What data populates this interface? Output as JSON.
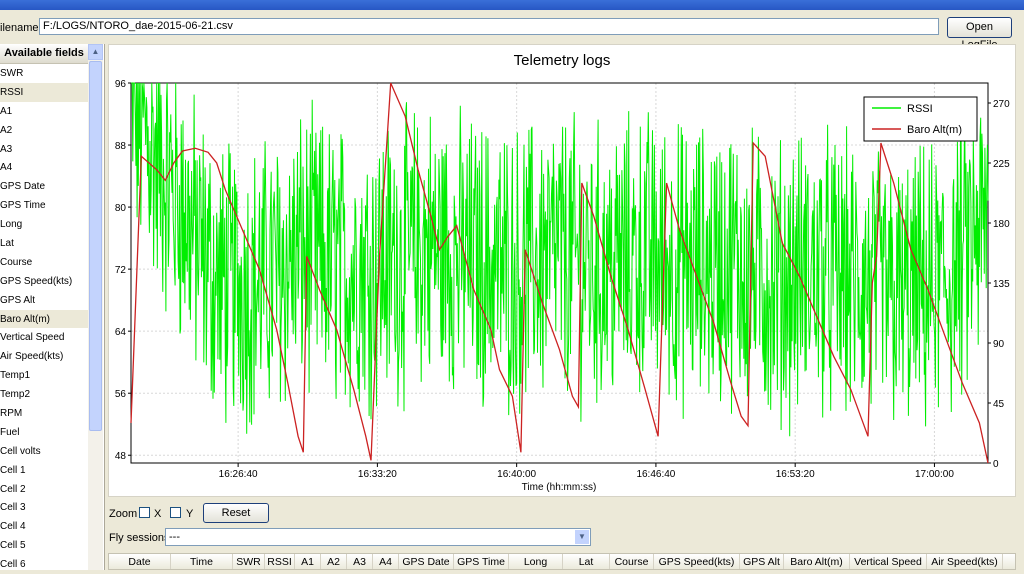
{
  "window": {
    "title": ""
  },
  "file": {
    "label": "ilename",
    "path": "F:/LOGS/NTORO_dae-2015-06-21.csv",
    "open_button": "Open LogFile"
  },
  "sidebar": {
    "header": "Available fields",
    "items": [
      "SWR",
      "RSSI",
      "A1",
      "A2",
      "A3",
      "A4",
      "GPS Date",
      "GPS Time",
      "Long",
      "Lat",
      "Course",
      "GPS Speed(kts)",
      "GPS Alt",
      "Baro Alt(m)",
      "Vertical Speed",
      "Air Speed(kts)",
      "Temp1",
      "Temp2",
      "RPM",
      "Fuel",
      "Cell volts",
      "Cell 1",
      "Cell 2",
      "Cell 3",
      "Cell 4",
      "Cell 5",
      "Cell 6"
    ],
    "selected": [
      "RSSI",
      "Baro Alt(m)"
    ]
  },
  "controls": {
    "zoom_label": "Zoom",
    "zoom_x": "X",
    "zoom_y": "Y",
    "reset": "Reset",
    "fly_label": "Fly sessions",
    "fly_value": "---"
  },
  "table": {
    "columns": [
      "Date",
      "Time",
      "SWR",
      "RSSI",
      "A1",
      "A2",
      "A3",
      "A4",
      "GPS Date",
      "GPS Time",
      "Long",
      "Lat",
      "Course",
      "GPS Speed(kts)",
      "GPS Alt",
      "Baro Alt(m)",
      "Vertical Speed",
      "Air Speed(kts)"
    ]
  },
  "colors": {
    "rssi": "#00ee00",
    "baro": "#cc2222",
    "grid": "#d8d8d8"
  },
  "chart_data": {
    "type": "line",
    "title": "Telemetry logs",
    "xlabel": "Time (hh:mm:ss)",
    "x_tick_labels": [
      "16:26:40",
      "16:33:20",
      "16:40:00",
      "16:46:40",
      "16:53:20",
      "17:00:00"
    ],
    "y_left_ticks": [
      "48",
      "56",
      "64",
      "72",
      "80",
      "88",
      "96"
    ],
    "y_left_range": [
      47,
      96
    ],
    "y_right_ticks": [
      "0",
      "45",
      "90",
      "135",
      "180",
      "225",
      "270"
    ],
    "y_right_range": [
      0,
      285
    ],
    "legend_position": "top-right",
    "grid": true,
    "series": [
      {
        "name": "RSSI",
        "axis": "left",
        "color": "#00ee00",
        "values_summary": "noisy signal oscillating roughly 48 to 96",
        "envelope": [
          [
            0,
            93
          ],
          [
            5,
            82
          ],
          [
            10,
            70
          ],
          [
            15,
            70
          ],
          [
            20,
            74
          ],
          [
            25,
            72
          ],
          [
            30,
            73
          ],
          [
            35,
            75
          ],
          [
            40,
            73
          ],
          [
            45,
            72
          ],
          [
            50,
            74
          ],
          [
            55,
            72
          ],
          [
            60,
            74
          ],
          [
            65,
            72
          ],
          [
            70,
            73
          ],
          [
            75,
            70
          ],
          [
            80,
            72
          ],
          [
            85,
            70
          ],
          [
            90,
            68
          ],
          [
            95,
            70
          ],
          [
            100,
            78
          ]
        ]
      },
      {
        "name": "Baro Alt(m)",
        "axis": "right",
        "color": "#cc2222",
        "points": [
          [
            0,
            30
          ],
          [
            1.2,
            230
          ],
          [
            3,
            220
          ],
          [
            4,
            212
          ],
          [
            5,
            225
          ],
          [
            6,
            234
          ],
          [
            7.5,
            236
          ],
          [
            9,
            233
          ],
          [
            10,
            225
          ],
          [
            11,
            205
          ],
          [
            13,
            175
          ],
          [
            15,
            145
          ],
          [
            17,
            100
          ],
          [
            18.3,
            60
          ],
          [
            19.5,
            20
          ],
          [
            20.1,
            8
          ],
          [
            20.5,
            155
          ],
          [
            22,
            130
          ],
          [
            24,
            100
          ],
          [
            26,
            55
          ],
          [
            27.4,
            20
          ],
          [
            28,
            2
          ],
          [
            29,
            155
          ],
          [
            30.3,
            285
          ],
          [
            32,
            260
          ],
          [
            33.5,
            220
          ],
          [
            35,
            185
          ],
          [
            36,
            160
          ],
          [
            37,
            170
          ],
          [
            38,
            178
          ],
          [
            40,
            130
          ],
          [
            42,
            100
          ],
          [
            43,
            70
          ],
          [
            44.5,
            50
          ],
          [
            45.5,
            8
          ],
          [
            46,
            160
          ],
          [
            48,
            120
          ],
          [
            50,
            85
          ],
          [
            51.5,
            50
          ],
          [
            52.2,
            42
          ],
          [
            52.6,
            210
          ],
          [
            54,
            185
          ],
          [
            56,
            140
          ],
          [
            58,
            100
          ],
          [
            60,
            55
          ],
          [
            61.5,
            20
          ],
          [
            62.5,
            210
          ],
          [
            64,
            175
          ],
          [
            66,
            140
          ],
          [
            68,
            105
          ],
          [
            70,
            60
          ],
          [
            71.2,
            35
          ],
          [
            72,
            28
          ],
          [
            72.6,
            240
          ],
          [
            74,
            230
          ],
          [
            76,
            165
          ],
          [
            78,
            140
          ],
          [
            80,
            110
          ],
          [
            82,
            80
          ],
          [
            84,
            55
          ],
          [
            86,
            20
          ],
          [
            86.5,
            135
          ],
          [
            87,
            155
          ],
          [
            87.5,
            240
          ],
          [
            89,
            210
          ],
          [
            91,
            160
          ],
          [
            93,
            130
          ],
          [
            95,
            95
          ],
          [
            97,
            60
          ],
          [
            99,
            30
          ],
          [
            100,
            0
          ]
        ]
      }
    ]
  }
}
